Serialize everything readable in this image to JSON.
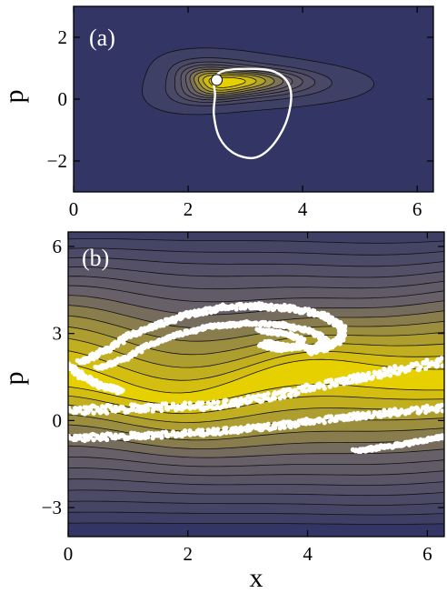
{
  "figure": {
    "background": "#ffffff"
  },
  "colors": {
    "field_low": "#333665",
    "field_mid": "#6a6268",
    "field_high": "#e7d000",
    "contour": "#111111",
    "overlay": "#ffffff",
    "frame": "#000000"
  },
  "chart_data": [
    {
      "panel": "(a)",
      "type": "heatmap",
      "xlabel": "",
      "ylabel": "p",
      "xlim": [
        0,
        6.283
      ],
      "ylim": [
        -3,
        3
      ],
      "xticks": [
        0,
        2,
        4,
        6
      ],
      "yticks": [
        2,
        0,
        -2
      ],
      "xtick_labels": [
        "0",
        "2",
        "4",
        "6"
      ],
      "ytick_labels": [
        "2",
        "0",
        "-2"
      ],
      "blob": {
        "center": [
          2.6,
          0.55
        ],
        "sx": 0.65,
        "sy": 0.38,
        "peak": 1.0
      },
      "contour_levels": 10,
      "curve_closed": [
        [
          2.45,
          0.62
        ],
        [
          2.6,
          0.9
        ],
        [
          3.0,
          0.98
        ],
        [
          3.45,
          0.92
        ],
        [
          3.72,
          0.6
        ],
        [
          3.8,
          0.05
        ],
        [
          3.7,
          -0.8
        ],
        [
          3.45,
          -1.55
        ],
        [
          3.15,
          -1.9
        ],
        [
          2.8,
          -1.75
        ],
        [
          2.55,
          -1.25
        ],
        [
          2.45,
          -0.5
        ],
        [
          2.47,
          0.15
        ]
      ],
      "marker_point": [
        2.5,
        0.62
      ]
    },
    {
      "panel": "(b)",
      "type": "heatmap",
      "xlabel": "x",
      "ylabel": "p",
      "xlim": [
        0,
        6.283
      ],
      "ylim": [
        -4,
        6.5
      ],
      "xticks": [
        0,
        2,
        4,
        6
      ],
      "yticks": [
        6,
        3,
        0,
        -3
      ],
      "xtick_labels": [
        "0",
        "2",
        "4",
        "6"
      ],
      "ytick_labels": [
        "6",
        "3",
        "0",
        "-3"
      ],
      "band_center": 1.3,
      "contour_levels": 14,
      "point_bands": [
        {
          "name": "spiral outer",
          "points": [
            [
              0.2,
              2.0
            ],
            [
              0.6,
              2.4
            ],
            [
              1.0,
              2.9
            ],
            [
              1.5,
              3.3
            ],
            [
              2.0,
              3.65
            ],
            [
              2.6,
              3.9
            ],
            [
              3.2,
              3.95
            ],
            [
              3.8,
              3.85
            ],
            [
              4.3,
              3.6
            ],
            [
              4.6,
              3.2
            ],
            [
              4.55,
              2.8
            ],
            [
              4.3,
              2.5
            ],
            [
              4.0,
              2.35
            ]
          ],
          "width": 6
        },
        {
          "name": "spiral inner",
          "points": [
            [
              0.5,
              1.8
            ],
            [
              0.9,
              2.1
            ],
            [
              1.3,
              2.55
            ],
            [
              1.8,
              2.95
            ],
            [
              2.4,
              3.25
            ],
            [
              3.0,
              3.35
            ],
            [
              3.6,
              3.3
            ],
            [
              4.1,
              3.05
            ],
            [
              4.3,
              2.75
            ],
            [
              4.1,
              2.5
            ],
            [
              3.7,
              2.55
            ],
            [
              3.3,
              2.7
            ]
          ],
          "width": 4
        },
        {
          "name": "spiral core",
          "points": [
            [
              3.2,
              3.1
            ],
            [
              3.6,
              3.0
            ],
            [
              3.9,
              2.8
            ],
            [
              3.85,
              2.55
            ],
            [
              3.55,
              2.45
            ],
            [
              3.2,
              2.6
            ]
          ],
          "width": 4
        },
        {
          "name": "band upper",
          "points": [
            [
              0.0,
              0.35
            ],
            [
              0.8,
              0.4
            ],
            [
              1.6,
              0.45
            ],
            [
              2.4,
              0.5
            ],
            [
              3.2,
              0.75
            ],
            [
              4.0,
              1.1
            ],
            [
              4.8,
              1.45
            ],
            [
              5.5,
              1.75
            ],
            [
              6.283,
              2.05
            ]
          ],
          "width": 9
        },
        {
          "name": "band lower",
          "points": [
            [
              0.0,
              -0.6
            ],
            [
              0.8,
              -0.55
            ],
            [
              1.6,
              -0.5
            ],
            [
              2.4,
              -0.4
            ],
            [
              3.2,
              -0.25
            ],
            [
              4.0,
              -0.05
            ],
            [
              4.8,
              0.15
            ],
            [
              5.5,
              0.3
            ],
            [
              6.283,
              0.45
            ]
          ],
          "width": 7
        },
        {
          "name": "band tail",
          "points": [
            [
              4.8,
              -1.05
            ],
            [
              5.3,
              -0.9
            ],
            [
              5.8,
              -0.75
            ],
            [
              6.283,
              -0.55
            ]
          ],
          "width": 4
        },
        {
          "name": "left edge",
          "points": [
            [
              0.0,
              1.9
            ],
            [
              0.25,
              1.5
            ],
            [
              0.55,
              1.2
            ],
            [
              0.9,
              1.0
            ]
          ],
          "width": 6
        }
      ]
    }
  ]
}
